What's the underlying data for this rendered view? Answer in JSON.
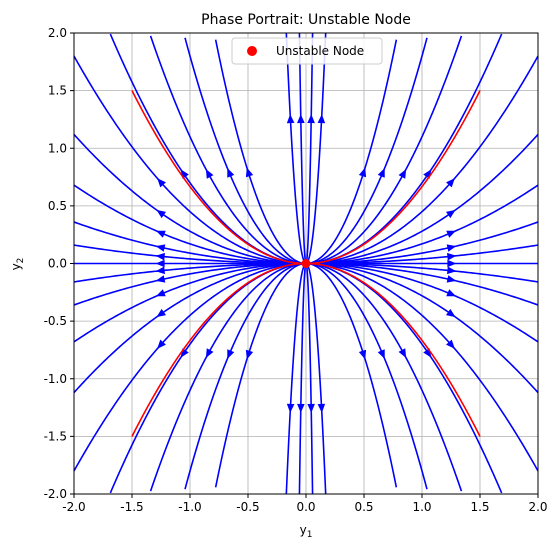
{
  "chart_data": {
    "type": "streamplot",
    "title": "Phase Portrait: Unstable Node",
    "xlabel": "y",
    "xlabel_sub": "1",
    "ylabel": "y",
    "ylabel_sub": "2",
    "xlim": [
      -2.0,
      2.0
    ],
    "ylim": [
      -2.0,
      2.0
    ],
    "x_ticks": [
      "-2.0",
      "-1.5",
      "-1.0",
      "-0.5",
      "0.0",
      "0.5",
      "1.0",
      "1.5",
      "2.0"
    ],
    "y_ticks": [
      "-2.0",
      "-1.5",
      "-1.0",
      "-0.5",
      "0.0",
      "0.5",
      "1.0",
      "1.5",
      "2.0"
    ],
    "grid": true,
    "legend": {
      "placement": "upper center",
      "entries": [
        {
          "label": "Unstable Node",
          "marker": "circle",
          "color": "#ff0000"
        }
      ]
    },
    "equilibrium": {
      "label": "Unstable Node",
      "x": 0.0,
      "y": 0.0,
      "color": "#ff0000"
    },
    "stream_color": "#0000ff",
    "trajectory_color": "#ff0000",
    "field": {
      "lambda1": 1,
      "lambda2": 2
    },
    "trajectories": [
      {
        "c": 0.667,
        "x_range": [
          -1.5,
          1.5
        ]
      },
      {
        "c": -0.667,
        "x_range": [
          -1.5,
          1.5
        ]
      }
    ]
  }
}
